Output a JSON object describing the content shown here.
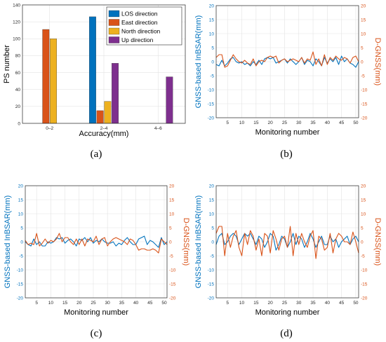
{
  "colors": {
    "los": "#0072BD",
    "east": "#D95319",
    "north": "#EDB120",
    "up": "#7E2F8E",
    "grid": "#E3E3E3",
    "axis": "#262626"
  },
  "panel_labels": {
    "a": "(a)",
    "b": "(b)",
    "c": "(c)",
    "d": "(d)"
  },
  "chart_data": [
    {
      "id": "a",
      "type": "bar",
      "xlabel": "Accuracy(mm)",
      "ylabel": "PS number",
      "categories": [
        "0–2",
        "2–4",
        "4–6"
      ],
      "ylim": [
        0,
        140
      ],
      "yticks": [
        0,
        20,
        40,
        60,
        80,
        100,
        120,
        140
      ],
      "grid": true,
      "legend": "top-right",
      "series": [
        {
          "name": "LOS direction",
          "color": "#0072BD",
          "values": [
            0,
            126,
            0
          ]
        },
        {
          "name": "East direction",
          "color": "#D95319",
          "values": [
            111,
            15,
            0
          ]
        },
        {
          "name": "North direction",
          "color": "#EDB120",
          "values": [
            100,
            26,
            0
          ]
        },
        {
          "name": "Up direction",
          "color": "#7E2F8E",
          "values": [
            0,
            71,
            55
          ]
        }
      ]
    },
    {
      "id": "b",
      "type": "line",
      "xlabel": "Monitoring number",
      "ylabel_left": "GNSS-based InBSAR(mm)",
      "ylabel_right": "D-GNSS(mm)",
      "xlim": [
        1,
        51
      ],
      "xticks": [
        5,
        10,
        15,
        20,
        25,
        30,
        35,
        40,
        45,
        50
      ],
      "ylim": [
        -20,
        20
      ],
      "yticks": [
        -20,
        -15,
        -10,
        -5,
        0,
        5,
        10,
        15,
        20
      ],
      "grid": true,
      "series": [
        {
          "name": "GNSS-based InBSAR",
          "axis": "left",
          "color": "#0072BD",
          "values": [
            -1,
            -1.5,
            0.5,
            -1.5,
            -0.5,
            1,
            1.5,
            0,
            -0.5,
            0,
            -1,
            -0.5,
            -1.5,
            0,
            -1,
            0.5,
            -1,
            1,
            1.5,
            1,
            1.5,
            -0.5,
            0,
            0.5,
            1,
            -0.5,
            1,
            0,
            -1,
            0,
            1.5,
            -1,
            0.5,
            0,
            -1.5,
            1,
            0,
            -1.5,
            1.5,
            -0.5,
            1,
            0,
            1.5,
            -1,
            2,
            0,
            1,
            -0.5,
            -1,
            -2,
            0
          ]
        },
        {
          "name": "D-GNSS",
          "axis": "right",
          "color": "#D95319",
          "values": [
            1.5,
            2.5,
            2.5,
            -2,
            -1.5,
            0.5,
            2.5,
            1,
            0,
            -0.5,
            0.5,
            -0.5,
            -1,
            1,
            -1.5,
            0,
            0.5,
            0,
            1.5,
            2,
            1.5,
            2,
            -0.5,
            0.5,
            1,
            0,
            0.5,
            1,
            0.5,
            0,
            1.5,
            -0.5,
            1,
            0.5,
            3.5,
            -1,
            1,
            -1.5,
            2.5,
            -1,
            1.5,
            0.5,
            2,
            1,
            0.5,
            1.5,
            1,
            -0.5,
            1.5,
            2,
            0
          ]
        }
      ]
    },
    {
      "id": "c",
      "type": "line",
      "xlabel": "Monitoring number",
      "ylabel_left": "GNSS-based InBSAR(mm)",
      "ylabel_right": "D-GNSS(mm)",
      "xlim": [
        1,
        51
      ],
      "xticks": [
        5,
        10,
        15,
        20,
        25,
        30,
        35,
        40,
        45,
        50
      ],
      "ylim": [
        -20,
        20
      ],
      "yticks": [
        -20,
        -15,
        -10,
        -5,
        0,
        5,
        10,
        15,
        20
      ],
      "grid": true,
      "series": [
        {
          "name": "GNSS-based InBSAR",
          "axis": "left",
          "color": "#0072BD",
          "values": [
            0,
            -1,
            -1.5,
            1,
            -1,
            0,
            -1.5,
            -1.5,
            0,
            -0.5,
            0,
            1.5,
            1,
            1.5,
            -0.5,
            0.5,
            1,
            0,
            -1.5,
            1,
            0.5,
            1.5,
            0,
            1.5,
            -0.5,
            0.5,
            0,
            1,
            0,
            -0.5,
            -0.5,
            0,
            -1.5,
            -0.5,
            -1,
            0.5,
            1.5,
            0,
            -1,
            -1,
            1,
            1.5,
            2,
            -1,
            0.5,
            0,
            -1,
            -2,
            1.5,
            -1,
            0
          ]
        },
        {
          "name": "D-GNSS",
          "axis": "right",
          "color": "#D95319",
          "values": [
            0.5,
            -1,
            -0.5,
            -1,
            3,
            -1.5,
            -0.5,
            1,
            -0.5,
            0.5,
            0,
            1,
            3,
            0,
            1.5,
            1.5,
            0,
            -1,
            1,
            -1,
            1,
            -1.5,
            1,
            0.5,
            0,
            2,
            -1,
            1,
            1.5,
            -1.5,
            0,
            1,
            1.5,
            1,
            0.5,
            0,
            -1,
            1,
            0.5,
            -1,
            -3,
            -2.5,
            -2.5,
            -3,
            -3,
            -2.5,
            -3,
            -4,
            1,
            0,
            -1
          ]
        }
      ]
    },
    {
      "id": "d",
      "type": "line",
      "xlabel": "Monitoring number",
      "ylabel_left": "GNSS-based InBSAR(mm)",
      "ylabel_right": "D-GNSS(mm)",
      "xlim": [
        1,
        51
      ],
      "xticks": [
        5,
        10,
        15,
        20,
        25,
        30,
        35,
        40,
        45,
        50
      ],
      "ylim": [
        -20,
        20
      ],
      "yticks": [
        -20,
        -15,
        -10,
        -5,
        0,
        5,
        10,
        15,
        20
      ],
      "grid": true,
      "series": [
        {
          "name": "GNSS-based InBSAR",
          "axis": "left",
          "color": "#0072BD",
          "values": [
            -1,
            2,
            3,
            -1,
            0,
            2,
            3,
            2,
            -1,
            1,
            3,
            2,
            3,
            1,
            -1,
            2,
            1,
            -2,
            0,
            3,
            2,
            -3,
            -1,
            2,
            1,
            -2,
            0,
            3,
            -1,
            2,
            1,
            -2,
            0,
            3,
            1,
            -2,
            0,
            2,
            -1,
            -1,
            2,
            0,
            1,
            -2,
            0,
            1,
            2,
            -1,
            1,
            2,
            0
          ]
        },
        {
          "name": "D-GNSS",
          "axis": "right",
          "color": "#D95319",
          "values": [
            3,
            5.5,
            5.5,
            -5,
            3,
            -2,
            2,
            4,
            -2,
            -5,
            3,
            -1,
            4,
            2,
            -3,
            1,
            -5,
            3,
            2,
            -4,
            4,
            1,
            -3,
            1,
            2,
            -2,
            5.5,
            -5,
            3,
            -1,
            3,
            0,
            -2,
            2,
            4,
            -6,
            2,
            1,
            -3,
            -2,
            3,
            -4,
            1,
            3,
            2,
            0,
            0,
            -1,
            3.5,
            0,
            -4
          ]
        }
      ]
    }
  ]
}
